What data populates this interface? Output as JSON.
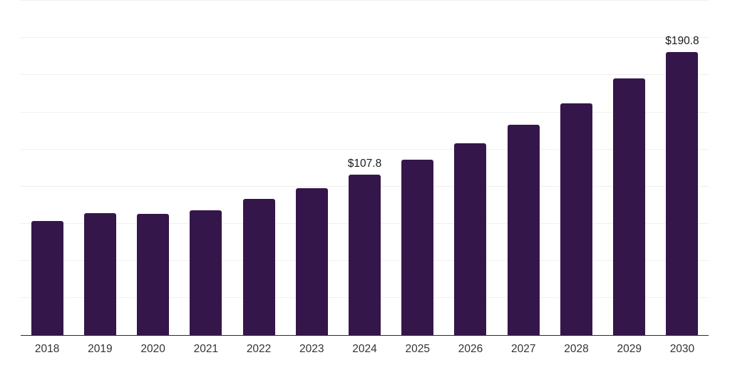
{
  "chart_data": {
    "type": "bar",
    "title": "",
    "xlabel": "",
    "ylabel": "",
    "categories": [
      "2018",
      "2019",
      "2020",
      "2021",
      "2022",
      "2023",
      "2024",
      "2025",
      "2026",
      "2027",
      "2028",
      "2029",
      "2030"
    ],
    "values": [
      76.7,
      82.3,
      81.4,
      84.2,
      91.6,
      99.0,
      107.8,
      118.1,
      129.3,
      141.8,
      156.0,
      172.6,
      190.8
    ],
    "value_labels": {
      "2024": "$107.8",
      "2030": "$190.8"
    },
    "ylim": [
      0,
      225.6
    ],
    "gridline_step": 25,
    "grid": true,
    "legend": false,
    "colors": {
      "bar": "#35164A",
      "grid": "#f0f0f0",
      "axis": "#2b2b2b",
      "tick_label": "#333333",
      "value_label": "#1a1a1a",
      "background": "#ffffff"
    }
  }
}
